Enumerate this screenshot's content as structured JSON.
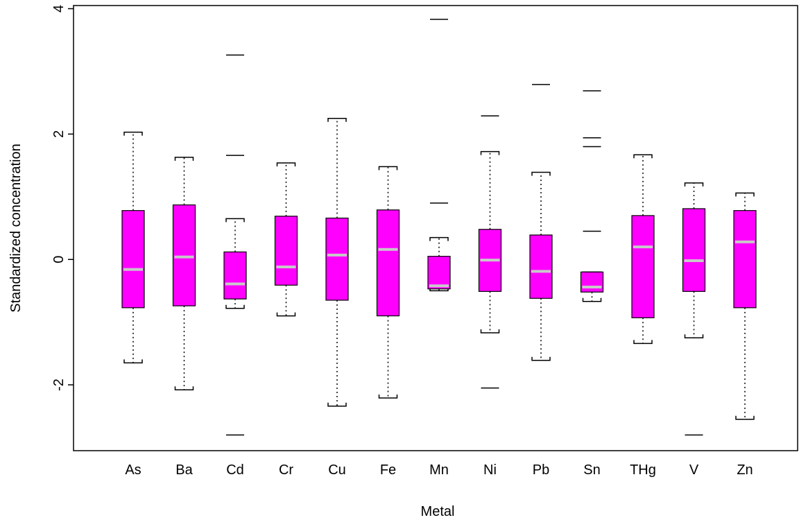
{
  "chart_data": {
    "type": "box",
    "xlabel": "Metal",
    "ylabel": "Standardized concentration",
    "ylim": [
      -3.05,
      4.05
    ],
    "yticks": [
      -2,
      0,
      2,
      4
    ],
    "ytick_labels": [
      "-2",
      "0",
      "2",
      "4"
    ],
    "grid": false,
    "legend": "none",
    "box_color": "#ff00ff",
    "median_color": "#c8c8c8",
    "categories": [
      "As",
      "Ba",
      "Cd",
      "Cr",
      "Cu",
      "Fe",
      "Mn",
      "Ni",
      "Pb",
      "Sn",
      "THg",
      "V",
      "Zn"
    ],
    "boxes": [
      {
        "name": "As",
        "whisker_low": -1.65,
        "q1": -0.77,
        "median": -0.16,
        "q3": 0.78,
        "whisker_high": 2.03,
        "outliers": []
      },
      {
        "name": "Ba",
        "whisker_low": -2.08,
        "q1": -0.74,
        "median": 0.04,
        "q3": 0.87,
        "whisker_high": 1.63,
        "outliers": []
      },
      {
        "name": "Cd",
        "whisker_low": -0.78,
        "q1": -0.63,
        "median": -0.39,
        "q3": 0.12,
        "whisker_high": 0.65,
        "outliers": [
          1.66,
          3.26,
          -2.8
        ]
      },
      {
        "name": "Cr",
        "whisker_low": -0.9,
        "q1": -0.41,
        "median": -0.12,
        "q3": 0.69,
        "whisker_high": 1.54,
        "outliers": []
      },
      {
        "name": "Cu",
        "whisker_low": -2.34,
        "q1": -0.65,
        "median": 0.07,
        "q3": 0.66,
        "whisker_high": 2.25,
        "outliers": []
      },
      {
        "name": "Fe",
        "whisker_low": -2.21,
        "q1": -0.9,
        "median": 0.16,
        "q3": 0.79,
        "whisker_high": 1.48,
        "outliers": []
      },
      {
        "name": "Mn",
        "whisker_low": -0.5,
        "q1": -0.47,
        "median": -0.42,
        "q3": 0.05,
        "whisker_high": 0.35,
        "outliers": [
          0.9,
          3.83
        ]
      },
      {
        "name": "Ni",
        "whisker_low": -1.17,
        "q1": -0.51,
        "median": -0.01,
        "q3": 0.48,
        "whisker_high": 1.72,
        "outliers": [
          2.29,
          -2.05
        ]
      },
      {
        "name": "Pb",
        "whisker_low": -1.61,
        "q1": -0.62,
        "median": -0.19,
        "q3": 0.39,
        "whisker_high": 1.39,
        "outliers": [
          2.79
        ]
      },
      {
        "name": "Sn",
        "whisker_low": -0.67,
        "q1": -0.52,
        "median": -0.44,
        "q3": -0.2,
        "whisker_high": -0.2,
        "outliers": [
          0.45,
          1.8,
          1.94,
          2.69
        ]
      },
      {
        "name": "THg",
        "whisker_low": -1.34,
        "q1": -0.93,
        "median": 0.2,
        "q3": 0.7,
        "whisker_high": 1.67,
        "outliers": []
      },
      {
        "name": "V",
        "whisker_low": -1.25,
        "q1": -0.51,
        "median": -0.02,
        "q3": 0.81,
        "whisker_high": 1.22,
        "outliers": [
          -2.8
        ]
      },
      {
        "name": "Zn",
        "whisker_low": -2.55,
        "q1": -0.77,
        "median": 0.28,
        "q3": 0.78,
        "whisker_high": 1.06,
        "outliers": []
      }
    ]
  }
}
